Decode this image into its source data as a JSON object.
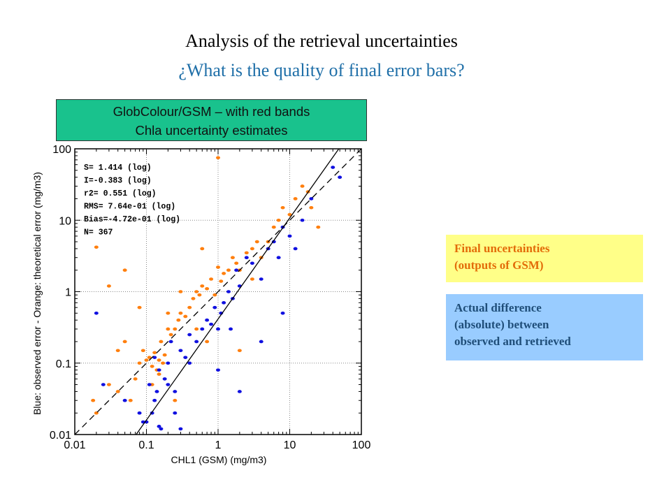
{
  "title": "Analysis of the retrieval uncertainties",
  "subtitle": "¿What is the quality of final error bars?",
  "box_label": {
    "line1": "GlobColour/GSM – with red bands",
    "line2": "Chla uncertainty estimates"
  },
  "legend": {
    "orange_line1": "Final uncertainties",
    "orange_line2": "(outputs of GSM)",
    "blue_line1": "Actual difference",
    "blue_line2": "(absolute) between",
    "blue_line3": "observed and retrieved"
  },
  "colors": {
    "orange": "#ff7f0e",
    "blue": "#1010e0",
    "title_blue": "#1f6fa8"
  },
  "chart_data": {
    "type": "scatter",
    "xlabel": "CHL1 (GSM) (mg/m3)",
    "ylabel": "Blue: observed error - Orange: theoretical error (mg/m3)",
    "xscale": "log",
    "yscale": "log",
    "xlim": [
      0.01,
      100
    ],
    "ylim": [
      0.01,
      100
    ],
    "x_ticks": [
      "0.01",
      "0.1",
      "1",
      "10",
      "100"
    ],
    "y_ticks": [
      "0.01",
      "0.1",
      "1",
      "10",
      "100"
    ],
    "grid": true,
    "stats": [
      "S= 1.414 (log)",
      "I=-0.383 (log)",
      "r2= 0.551 (log)",
      "RMS= 7.64e-01 (log)",
      "Bias=-4.72e-01 (log)",
      "N= 367"
    ],
    "lines": [
      {
        "style": "dashed",
        "x": [
          0.01,
          100
        ],
        "y": [
          0.01,
          100
        ]
      },
      {
        "style": "solid",
        "slope_log": 1.414,
        "intercept_log": -0.383
      }
    ],
    "series": [
      {
        "color": "orange",
        "x": [
          0.018,
          0.02,
          0.03,
          0.04,
          0.05,
          0.06,
          0.07,
          0.08,
          0.09,
          0.1,
          0.11,
          0.12,
          0.13,
          0.14,
          0.15,
          0.16,
          0.17,
          0.18,
          0.2,
          0.22,
          0.25,
          0.28,
          0.3,
          0.35,
          0.4,
          0.45,
          0.5,
          0.55,
          0.6,
          0.7,
          0.8,
          0.9,
          1.0,
          1.1,
          1.2,
          1.4,
          1.6,
          1.8,
          2.0,
          2.5,
          3.0,
          3.5,
          4.0,
          5.0,
          6.0,
          7.0,
          8.0,
          10,
          12,
          15,
          18,
          20,
          25,
          1.0,
          0.12,
          0.15,
          0.2,
          0.25,
          0.3,
          0.05,
          0.04,
          0.08,
          0.5,
          0.6,
          0.7,
          2.0,
          3.0,
          0.03,
          0.02
        ],
        "y": [
          0.03,
          4.2,
          0.05,
          0.04,
          0.2,
          0.03,
          0.06,
          0.1,
          0.15,
          0.11,
          0.12,
          0.09,
          0.14,
          0.08,
          0.11,
          0.2,
          0.1,
          0.13,
          0.3,
          0.25,
          0.3,
          0.4,
          0.5,
          0.45,
          0.6,
          0.8,
          1.0,
          0.9,
          1.2,
          1.1,
          1.5,
          0.9,
          2.2,
          1.4,
          1.8,
          2.0,
          3.0,
          2.5,
          2.0,
          3.5,
          4.0,
          5.0,
          3.0,
          5.0,
          8.0,
          10.0,
          15.0,
          12.0,
          20.0,
          30.0,
          25.0,
          15.0,
          8.0,
          75.0,
          0.05,
          0.07,
          0.5,
          0.03,
          1.0,
          2.0,
          0.15,
          0.6,
          0.3,
          4.0,
          0.2,
          0.15,
          1.5,
          1.2,
          0.02
        ],
        "note_count": 367
      },
      {
        "color": "blue",
        "x": [
          0.02,
          0.025,
          0.05,
          0.08,
          0.1,
          0.11,
          0.12,
          0.13,
          0.14,
          0.15,
          0.16,
          0.18,
          0.2,
          0.22,
          0.25,
          0.3,
          0.35,
          0.4,
          0.5,
          0.6,
          0.7,
          0.8,
          0.9,
          1.0,
          1.1,
          1.2,
          1.4,
          1.6,
          1.8,
          2.0,
          2.5,
          3.0,
          4.0,
          5.0,
          6.0,
          7.0,
          8.0,
          10,
          12,
          15,
          20,
          40,
          50,
          0.15,
          0.2,
          0.25,
          0.3,
          0.4,
          1.0,
          1.5,
          2.0,
          4.0,
          8.0,
          0.09,
          0.13
        ],
        "y": [
          0.5,
          0.05,
          0.03,
          0.02,
          0.015,
          0.05,
          0.02,
          0.03,
          0.04,
          0.08,
          0.012,
          0.06,
          0.1,
          0.2,
          0.04,
          0.15,
          0.12,
          0.25,
          0.2,
          0.3,
          0.4,
          0.35,
          0.6,
          0.3,
          0.5,
          0.7,
          1.0,
          0.8,
          2.0,
          1.2,
          3.0,
          2.5,
          1.5,
          4.0,
          5.0,
          3.0,
          8.0,
          6.0,
          4.0,
          10.0,
          20.0,
          55.0,
          40.0,
          0.013,
          0.05,
          0.02,
          0.012,
          0.1,
          0.08,
          0.3,
          0.04,
          0.2,
          0.5,
          0.015,
          0.12
        ],
        "note_count": 367
      }
    ]
  }
}
